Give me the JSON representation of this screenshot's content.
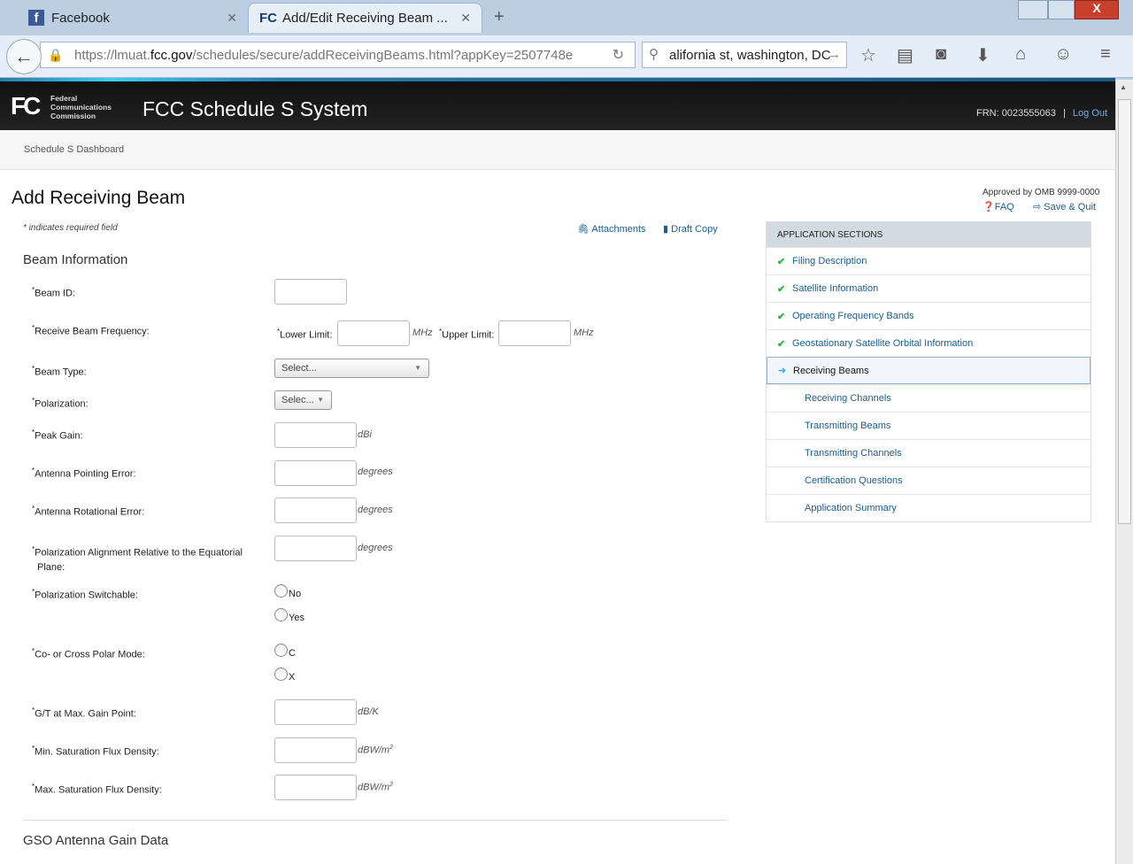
{
  "browser": {
    "tabs": [
      {
        "label": "Facebook",
        "icon": "facebook-icon"
      },
      {
        "label": "Add/Edit Receiving Beam ...",
        "icon": "fcc-icon"
      }
    ],
    "url_prefix": "https://lmuat.",
    "url_domain": "fcc.gov",
    "url_path": "/schedules/secure/addReceivingBeams.html?appKey=2507748e",
    "search_value": "alifornia st, washington, DC"
  },
  "header": {
    "logo_lines": [
      "Federal",
      "Communications",
      "Commission"
    ],
    "logo_mark": "FC",
    "title": "FCC Schedule S System",
    "frn": "FRN: 0023555063",
    "separator": "|",
    "logout": "Log Out"
  },
  "subnav": {
    "dashboard": "Schedule S Dashboard"
  },
  "page": {
    "title": "Add Receiving Beam",
    "required_note": "* indicates required field",
    "attachments": "Attachments",
    "draft_copy": "Draft Copy",
    "approved": "Approved by OMB 9999-0000",
    "faq": "FAQ",
    "save_quit": "Save & Quit",
    "section_title": "Beam Information",
    "next_section": "GSO Antenna Gain Data"
  },
  "form": {
    "beam_id": "Beam ID:",
    "frequency": "Receive Beam Frequency:",
    "lower": "Lower Limit:",
    "upper": "Upper Limit:",
    "mhz": "MHz",
    "beam_type": "Beam Type:",
    "beam_type_value": "Select...",
    "polarization": "Polarization:",
    "polarization_value": "Selec...",
    "peak_gain": "Peak Gain:",
    "dbi": "dBi",
    "ape": "Antenna Pointing Error:",
    "are": "Antenna Rotational Error:",
    "degrees": "degrees",
    "pol_align": "Polarization Alignment Relative to the Equatorial",
    "pol_align2": "Plane:",
    "switchable": "Polarization Switchable:",
    "no": "No",
    "yes": "Yes",
    "copolar": "Co- or Cross Polar Mode:",
    "c": "C",
    "x": "X",
    "gt": "G/T at Max. Gain Point:",
    "dbk": "dB/K",
    "min_sfd": "Min. Saturation Flux Density:",
    "max_sfd": "Max. Saturation Flux Density:",
    "dbw": "dBW/m",
    "sq": "2"
  },
  "sections": {
    "header": "APPLICATION SECTIONS",
    "items": [
      {
        "label": "Filing Description",
        "status": "complete"
      },
      {
        "label": "Satellite Information",
        "status": "complete"
      },
      {
        "label": "Operating Frequency Bands",
        "status": "complete"
      },
      {
        "label": "Geostationary Satellite Orbital Information",
        "status": "complete"
      },
      {
        "label": "Receiving Beams",
        "status": "current"
      },
      {
        "label": "Receiving Channels",
        "status": "pending"
      },
      {
        "label": "Transmitting Beams",
        "status": "pending"
      },
      {
        "label": "Transmitting Channels",
        "status": "pending"
      },
      {
        "label": "Certification Questions",
        "status": "pending"
      },
      {
        "label": "Application Summary",
        "status": "pending"
      }
    ]
  },
  "colors": {
    "link": "#1a5d8f",
    "check": "#2bb33a",
    "header_bg": "#1a1a1a"
  }
}
